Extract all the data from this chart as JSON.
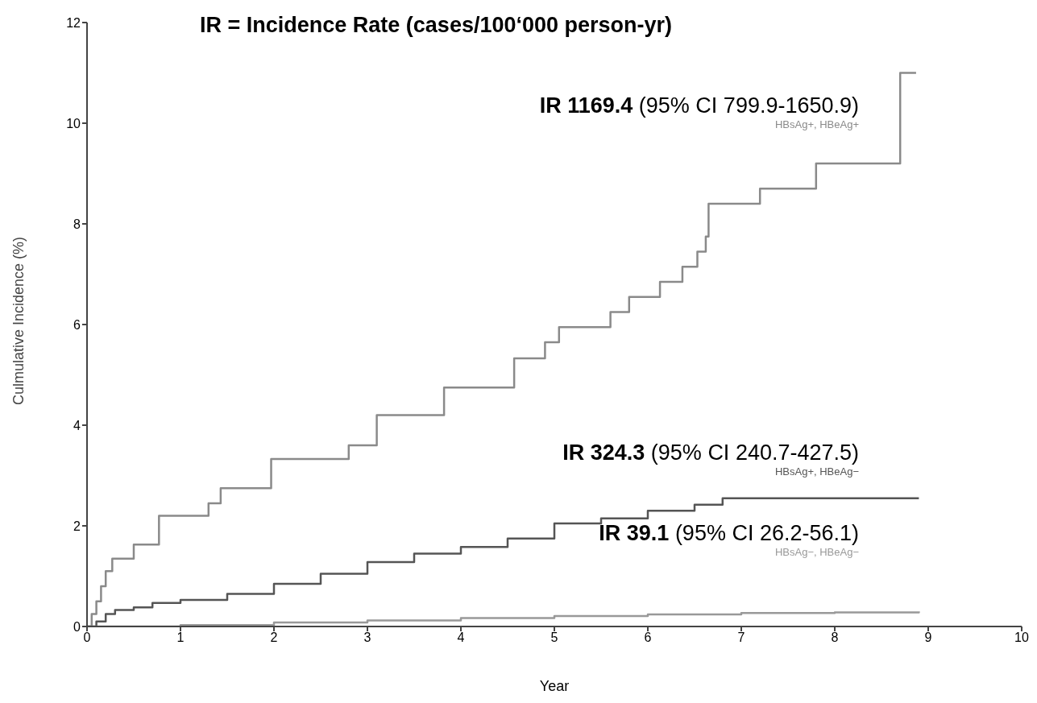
{
  "chart_data": {
    "type": "step",
    "title": "IR = Incidence Rate (cases/100‘000 person-yr)",
    "xlabel": "Year",
    "ylabel": "Culmulative Incidence (%)",
    "xlim": [
      0,
      10
    ],
    "xticks": [
      0,
      1,
      2,
      3,
      4,
      5,
      6,
      7,
      8,
      9,
      10
    ],
    "ylim": [
      0,
      12
    ],
    "yticks": [
      0,
      2,
      4,
      6,
      8,
      10,
      12
    ],
    "grid": false,
    "legend": false,
    "marker": "none",
    "line_style": "solid",
    "annotations": [
      "IR 1169.4 (95% CI 799.9-1650.9)",
      "IR 324.3 (95% CI 240.7-427.5)",
      "IR 39.1 (95% CI 26.2-56.1)"
    ],
    "series": [
      {
        "name": "HBsAg+, HBeAg+",
        "color": "#8a8a8a",
        "x": [
          0,
          0.05,
          0.1,
          0.15,
          0.2,
          0.27,
          0.5,
          0.77,
          1.3,
          1.43,
          1.97,
          2.8,
          3.1,
          3.82,
          4.57,
          4.9,
          5.05,
          5.6,
          5.8,
          6.13,
          6.37,
          6.53,
          6.62,
          6.65,
          7.2,
          7.8,
          8.7,
          8.87
        ],
        "values": [
          0,
          0.25,
          0.5,
          0.8,
          1.1,
          1.35,
          1.63,
          2.2,
          2.45,
          2.75,
          3.33,
          3.6,
          4.2,
          4.75,
          5.33,
          5.65,
          5.95,
          6.25,
          6.55,
          6.85,
          7.15,
          7.45,
          7.75,
          8.4,
          8.7,
          9.2,
          11.0,
          11.0
        ]
      },
      {
        "name": "HBsAg+, HBeAg−",
        "color": "#555555",
        "x": [
          0,
          0.1,
          0.2,
          0.3,
          0.5,
          0.7,
          1,
          1.5,
          2,
          2.5,
          3,
          3.5,
          4,
          4.5,
          5,
          5.5,
          6,
          6.5,
          6.8,
          8.9
        ],
        "values": [
          0,
          0.1,
          0.25,
          0.33,
          0.38,
          0.47,
          0.53,
          0.65,
          0.85,
          1.05,
          1.28,
          1.45,
          1.58,
          1.75,
          2.05,
          2.15,
          2.3,
          2.42,
          2.55,
          2.55
        ]
      },
      {
        "name": "HBsAg−, HBeAg−",
        "color": "#999999",
        "x": [
          0,
          1,
          2,
          3,
          4,
          5,
          6,
          7,
          8,
          8.9
        ],
        "values": [
          0,
          0.03,
          0.08,
          0.12,
          0.17,
          0.21,
          0.24,
          0.27,
          0.28,
          0.3
        ]
      }
    ]
  }
}
